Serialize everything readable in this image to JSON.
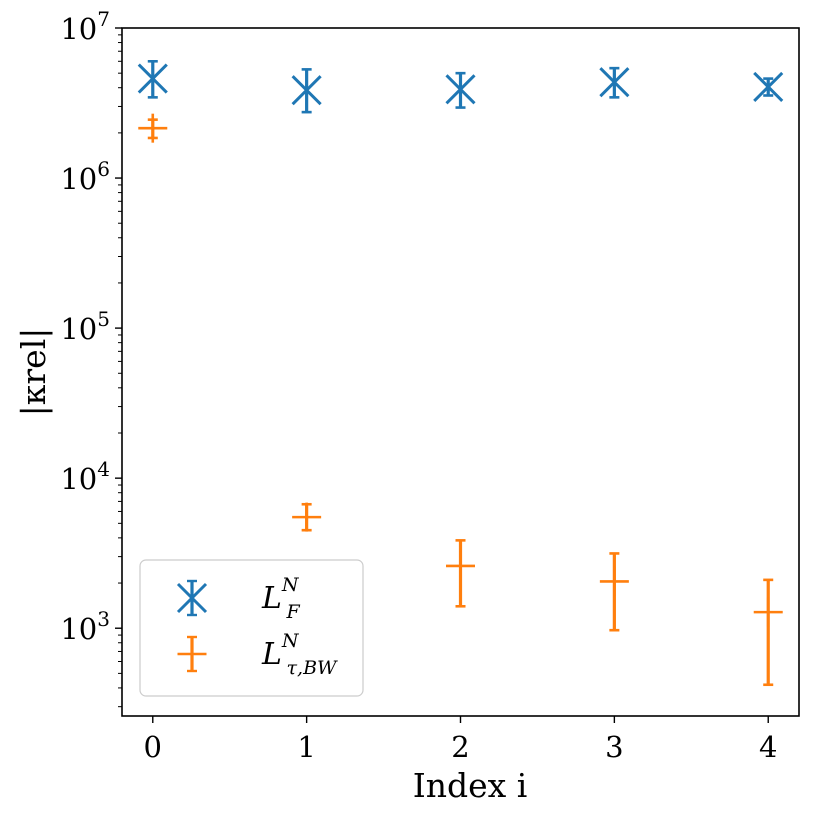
{
  "chart_data": {
    "type": "scatter",
    "title": "",
    "xlabel": "Index i",
    "ylabel": "|κrel|",
    "yscale": "log",
    "xlim": [
      -0.2,
      4.2
    ],
    "ylim": [
      260,
      10000000
    ],
    "x_ticks": [
      0,
      1,
      2,
      3,
      4
    ],
    "x_tick_labels": [
      "0",
      "1",
      "2",
      "3",
      "4"
    ],
    "y_ticks": [
      1000,
      10000,
      100000,
      1000000,
      10000000
    ],
    "y_tick_labels": [
      {
        "base": "10",
        "exp": "3"
      },
      {
        "base": "10",
        "exp": "4"
      },
      {
        "base": "10",
        "exp": "5"
      },
      {
        "base": "10",
        "exp": "6"
      },
      {
        "base": "10",
        "exp": "7"
      }
    ],
    "grid": false,
    "legend_position": "bottom-left",
    "series": [
      {
        "name": "L_F^N",
        "legend": {
          "main": "L",
          "sup": "N",
          "sub": "F"
        },
        "color": "#1f77b4",
        "marker": "x",
        "x": [
          0,
          1,
          2,
          3,
          4
        ],
        "y": [
          4600000,
          3850000,
          3900000,
          4350000,
          4050000
        ],
        "y_err_low": [
          3450000,
          2750000,
          2950000,
          3450000,
          3550000
        ],
        "y_err_high": [
          6000000,
          5300000,
          5000000,
          5400000,
          4600000
        ]
      },
      {
        "name": "L_{τ,BW}^N",
        "legend": {
          "main": "L",
          "sup": "N",
          "sub": "τ,BW"
        },
        "color": "#ff7f0e",
        "marker": "+",
        "x": [
          0,
          1,
          2,
          3,
          4
        ],
        "y": [
          2150000,
          5500,
          2600,
          2050,
          1280
        ],
        "y_err_low": [
          1850000,
          4500,
          1400,
          970,
          420
        ],
        "y_err_high": [
          2450000,
          6700,
          3850,
          3150,
          2100
        ]
      }
    ]
  }
}
